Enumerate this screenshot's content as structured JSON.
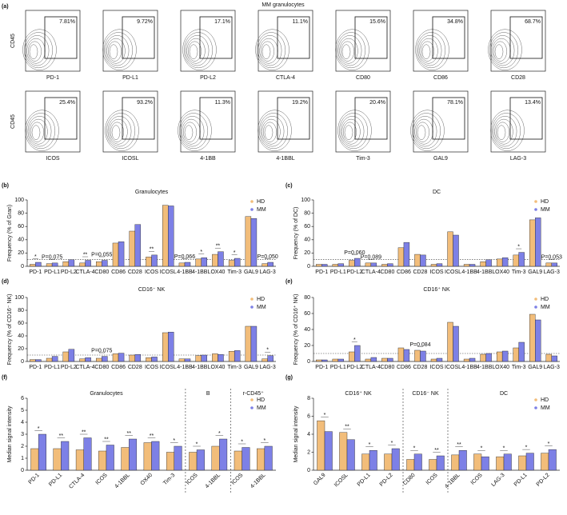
{
  "panel_a": {
    "panel": "(a)",
    "title": "MM granulocytes",
    "y_label": "CD45",
    "plots": [
      {
        "x_label": "PD-1",
        "gate_label": "7.81%"
      },
      {
        "x_label": "PD-L1",
        "gate_label": "9.72%"
      },
      {
        "x_label": "PD-L2",
        "gate_label": "17.1%"
      },
      {
        "x_label": "CTLA-4",
        "gate_label": "11.1%"
      },
      {
        "x_label": "CD80",
        "gate_label": "15.6%"
      },
      {
        "x_label": "CD86",
        "gate_label": "34.8%"
      },
      {
        "x_label": "CD28",
        "gate_label": "68.7%"
      },
      {
        "x_label": "ICOS",
        "gate_label": "25.4%"
      },
      {
        "x_label": "ICOSL",
        "gate_label": "93.2%"
      },
      {
        "x_label": "4-1BB",
        "gate_label": "11.3%"
      },
      {
        "x_label": "4-1BBL",
        "gate_label": "19.2%"
      },
      {
        "x_label": "Tim-3",
        "gate_label": "20.4%"
      },
      {
        "x_label": "GAL9",
        "gate_label": "78.1%"
      },
      {
        "x_label": "LAG-3",
        "gate_label": "13.4%"
      }
    ]
  },
  "chart_data": [
    {
      "type": "bar",
      "panel": "(b)",
      "title": "Granulocytes",
      "y_label": "Frequency (% of Gran)",
      "categories": [
        "PD-1",
        "PD-L1",
        "PD-L2",
        "CTLA-4",
        "CD80",
        "CD86",
        "CD28",
        "ICOS",
        "ICOSL",
        "4-1BB",
        "4-1BBL",
        "OX40",
        "Tim-3",
        "GAL9",
        "LAG-3"
      ],
      "series": [
        {
          "name": "HD",
          "color": "#f2bd7a",
          "values": [
            3,
            4,
            7,
            5,
            7,
            35,
            53,
            14,
            92,
            5,
            11,
            18,
            9,
            75,
            4
          ]
        },
        {
          "name": "MM",
          "color": "#7d80e6",
          "values": [
            6,
            5,
            10,
            9,
            9,
            37,
            63,
            17,
            91,
            6,
            13,
            22,
            12,
            72,
            6
          ]
        }
      ],
      "annotations": [
        "*",
        "P=0.075",
        null,
        "**",
        "P=0.055",
        null,
        null,
        "**",
        null,
        "P=0.066",
        "*",
        "**",
        "*",
        null,
        "P=0.050"
      ],
      "ylim": [
        0,
        100
      ],
      "yticks": [
        0,
        20,
        40,
        60,
        80,
        100
      ],
      "ref_line": 10
    },
    {
      "type": "bar",
      "panel": "(c)",
      "title": "DC",
      "y_label": "Frequency (% of DC)",
      "categories": [
        "PD-1",
        "PD-L1",
        "PD-L2",
        "CTLA-4",
        "CD80",
        "CD86",
        "CD28",
        "ICOS",
        "ICOSL",
        "4-1BB",
        "4-1BBL",
        "OX40",
        "Tim-3",
        "GAL9",
        "LAG-3"
      ],
      "series": [
        {
          "name": "HD",
          "color": "#f2bd7a",
          "values": [
            3,
            3,
            9,
            5,
            3,
            28,
            18,
            3,
            52,
            3,
            7,
            11,
            17,
            70,
            5
          ]
        },
        {
          "name": "MM",
          "color": "#7d80e6",
          "values": [
            3,
            4,
            12,
            5,
            4,
            36,
            17,
            4,
            47,
            3,
            10,
            13,
            21,
            73,
            5
          ]
        }
      ],
      "annotations": [
        null,
        null,
        "P=0.060",
        "P=0.089",
        null,
        null,
        null,
        null,
        null,
        null,
        null,
        null,
        "*",
        null,
        "P=0.053"
      ],
      "ylim": [
        0,
        100
      ],
      "yticks": [
        0,
        20,
        40,
        60,
        80,
        100
      ],
      "ref_line": 10
    },
    {
      "type": "bar",
      "panel": "(d)",
      "title": "CD16⁻ NK",
      "y_label": "Frequency (% of CD16⁻ NK)",
      "categories": [
        "PD-1",
        "PD-L1",
        "PD-L2",
        "CTLA-4",
        "CD80",
        "CD86",
        "CD28",
        "ICOS",
        "ICOSL",
        "4-1BB",
        "4-1BBL",
        "OX40",
        "Tim-3",
        "GAL9",
        "LAG-3"
      ],
      "series": [
        {
          "name": "HD",
          "color": "#f2bd7a",
          "values": [
            3,
            5,
            15,
            4,
            5,
            12,
            10,
            6,
            45,
            4,
            9,
            12,
            16,
            55,
            4
          ]
        },
        {
          "name": "MM",
          "color": "#7d80e6",
          "values": [
            3,
            8,
            19,
            6,
            8,
            13,
            11,
            7,
            46,
            4,
            10,
            11,
            17,
            55,
            9
          ]
        }
      ],
      "annotations": [
        null,
        null,
        null,
        null,
        "P=0.075",
        null,
        null,
        null,
        null,
        null,
        null,
        null,
        null,
        null,
        "*"
      ],
      "ylim": [
        0,
        100
      ],
      "yticks": [
        0,
        20,
        40,
        60,
        80,
        100
      ],
      "ref_line": 10
    },
    {
      "type": "bar",
      "panel": "(e)",
      "title": "CD16⁺ NK",
      "y_label": "Frequency (% of CD16⁺ NK)",
      "categories": [
        "PD-1",
        "PD-L1",
        "PD-L2",
        "CTLA-4",
        "CD80",
        "CD86",
        "CD28",
        "ICOS",
        "ICOSL",
        "4-1BB",
        "4-1BBL",
        "OX40",
        "Tim-3",
        "GAL9",
        "LAG-3"
      ],
      "series": [
        {
          "name": "HD",
          "color": "#f2bd7a",
          "values": [
            2,
            3,
            12,
            3,
            4,
            17,
            14,
            3,
            49,
            3,
            9,
            12,
            17,
            59,
            9
          ]
        },
        {
          "name": "MM",
          "color": "#7d80e6",
          "values": [
            2,
            3,
            20,
            5,
            4,
            15,
            13,
            4,
            44,
            4,
            10,
            13,
            24,
            52,
            7
          ]
        }
      ],
      "annotations": [
        null,
        null,
        "*",
        null,
        null,
        null,
        "P=0.084",
        null,
        null,
        null,
        null,
        null,
        null,
        null,
        null
      ],
      "ylim": [
        0,
        80
      ],
      "yticks": [
        0,
        20,
        40,
        60,
        80
      ],
      "ref_line": 10
    },
    {
      "type": "bar",
      "panel": "(f)",
      "y_label": "Median signal intensity",
      "groups": [
        {
          "name": "Granulocytes",
          "categories": [
            "PD-1",
            "PD-L1",
            "CTLA-4",
            "ICOS",
            "4-1BBL",
            "OX40",
            "Tim-3"
          ]
        },
        {
          "name": "B",
          "categories": [
            "ICOS",
            "4-1BBL"
          ]
        },
        {
          "name": "r-CD45⁺",
          "categories": [
            "ICOS",
            "4-1BBL"
          ]
        }
      ],
      "series": [
        {
          "name": "HD",
          "color": "#f2bd7a",
          "values": [
            1.8,
            1.8,
            1.7,
            1.6,
            1.9,
            2.3,
            1.5,
            1.5,
            2.0,
            1.6,
            1.8
          ]
        },
        {
          "name": "MM",
          "color": "#7d80e6",
          "values": [
            3.0,
            2.4,
            2.7,
            2.1,
            2.6,
            2.4,
            2.0,
            1.7,
            2.6,
            1.9,
            2.0
          ]
        }
      ],
      "annotations": [
        "*",
        "**",
        "**",
        "**",
        "**",
        "**",
        "*",
        "*",
        "*",
        "*",
        "*"
      ],
      "ylim": [
        0,
        6
      ],
      "yticks": [
        0,
        1,
        2,
        3,
        4,
        5,
        6
      ]
    },
    {
      "type": "bar",
      "panel": "(g)",
      "y_label": "Median signal intensity",
      "groups": [
        {
          "name": "CD16⁺ NK",
          "categories": [
            "GAL9",
            "ICOSL",
            "PD-L1",
            "PD-L2"
          ]
        },
        {
          "name": "CD16⁻ NK",
          "categories": [
            "CD80",
            "ICOS"
          ]
        },
        {
          "name": "DC",
          "categories": [
            "4-1BBL",
            "ICOS",
            "LAG-3",
            "PD-L1",
            "PD-L2"
          ]
        }
      ],
      "series": [
        {
          "name": "HD",
          "color": "#f2bd7a",
          "values": [
            5.5,
            4.2,
            1.8,
            1.8,
            1.2,
            1.2,
            1.7,
            1.8,
            1.5,
            1.6,
            1.9
          ]
        },
        {
          "name": "MM",
          "color": "#7d80e6",
          "values": [
            4.3,
            3.4,
            2.2,
            2.4,
            1.8,
            1.6,
            2.2,
            1.5,
            1.8,
            1.9,
            2.3
          ]
        }
      ],
      "annotations": [
        "*",
        "**",
        "*",
        "*",
        "*",
        "**",
        "**",
        "*",
        "*",
        "*",
        "*"
      ],
      "ylim": [
        0,
        8
      ],
      "yticks": [
        0,
        2,
        4,
        6,
        8
      ]
    }
  ]
}
